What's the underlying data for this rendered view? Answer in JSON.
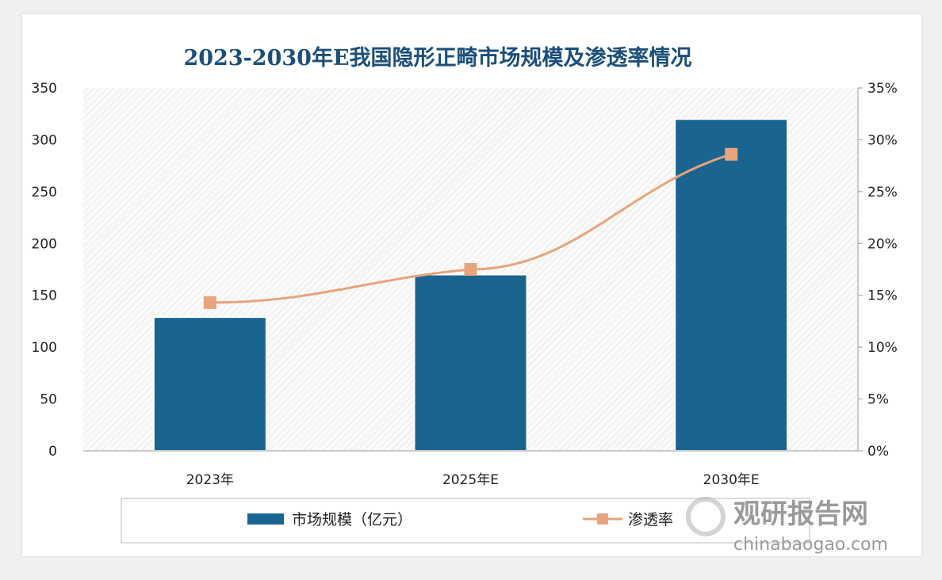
{
  "chart_data": {
    "type": "bar+line",
    "title": "2023-2030年E我国隐形正畸市场规模及渗透率情况",
    "categories": [
      "2023年",
      "2025年E",
      "2030年E"
    ],
    "series": [
      {
        "name": "市场规模（亿元）",
        "type": "bar",
        "axis": "left",
        "values": [
          129,
          170,
          320
        ],
        "color": "#1a6590"
      },
      {
        "name": "渗透率",
        "type": "line",
        "axis": "right",
        "values": [
          14.3,
          17.5,
          28.6
        ],
        "unit": "%",
        "color": "#e8a47c",
        "marker": "square"
      }
    ],
    "y_left": {
      "range": [
        0,
        350
      ],
      "ticks": [
        "0",
        "50",
        "100",
        "150",
        "200",
        "250",
        "300",
        "350"
      ]
    },
    "y_right": {
      "range": [
        0,
        35
      ],
      "ticks": [
        "0%",
        "5%",
        "10%",
        "15%",
        "20%",
        "25%",
        "30%",
        "35%"
      ]
    },
    "grid": false,
    "background": "diagonal hatch",
    "legend_placement": "bottom"
  },
  "watermark": {
    "brand": "观研报告网",
    "site": "chinabaogao.com"
  }
}
